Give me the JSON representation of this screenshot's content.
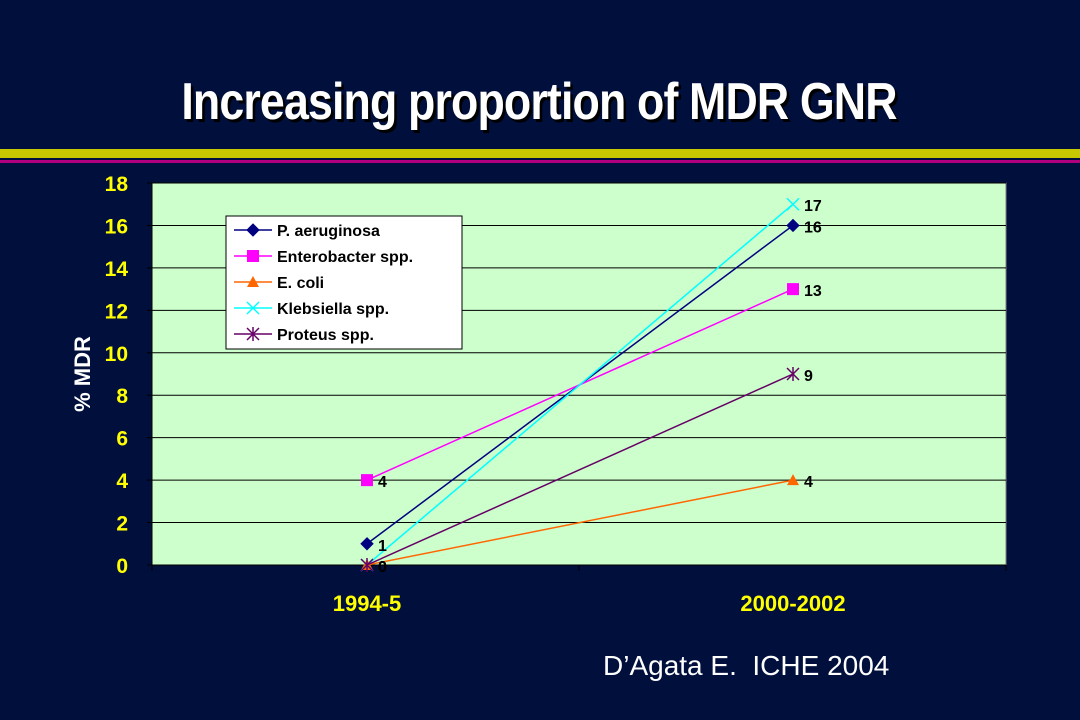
{
  "slide": {
    "title": "Increasing proportion of MDR GNR",
    "citation": "D’Agata E.  ICHE 2004"
  },
  "chart_data": {
    "type": "line",
    "title": "",
    "xlabel": "",
    "ylabel": "% MDR",
    "categories": [
      "1994-5",
      "2000-2002"
    ],
    "ylim": [
      0,
      18
    ],
    "yticks": [
      "0",
      "2",
      "4",
      "6",
      "8",
      "10",
      "12",
      "14",
      "16",
      "18"
    ],
    "grid": true,
    "legend_position": "top-left",
    "background_color": "#ccffcc",
    "series": [
      {
        "name": "P. aeruginosa",
        "values": [
          1,
          16
        ],
        "labels": [
          "1",
          "16"
        ],
        "color": "#000080",
        "marker": "diamond"
      },
      {
        "name": "Enterobacter spp.",
        "values": [
          4,
          13
        ],
        "labels": [
          "4",
          "13"
        ],
        "color": "#ff00ff",
        "marker": "square"
      },
      {
        "name": "E. coli",
        "values": [
          0,
          4
        ],
        "labels": [
          "0",
          "4"
        ],
        "color": "#ff6600",
        "marker": "triangle"
      },
      {
        "name": "Klebsiella spp.",
        "values": [
          0,
          17
        ],
        "labels": [
          "0",
          "17"
        ],
        "color": "#00ffff",
        "marker": "x"
      },
      {
        "name": "Proteus spp.",
        "values": [
          0,
          9
        ],
        "labels": [
          "0",
          "9"
        ],
        "color": "#660066",
        "marker": "star"
      }
    ]
  }
}
